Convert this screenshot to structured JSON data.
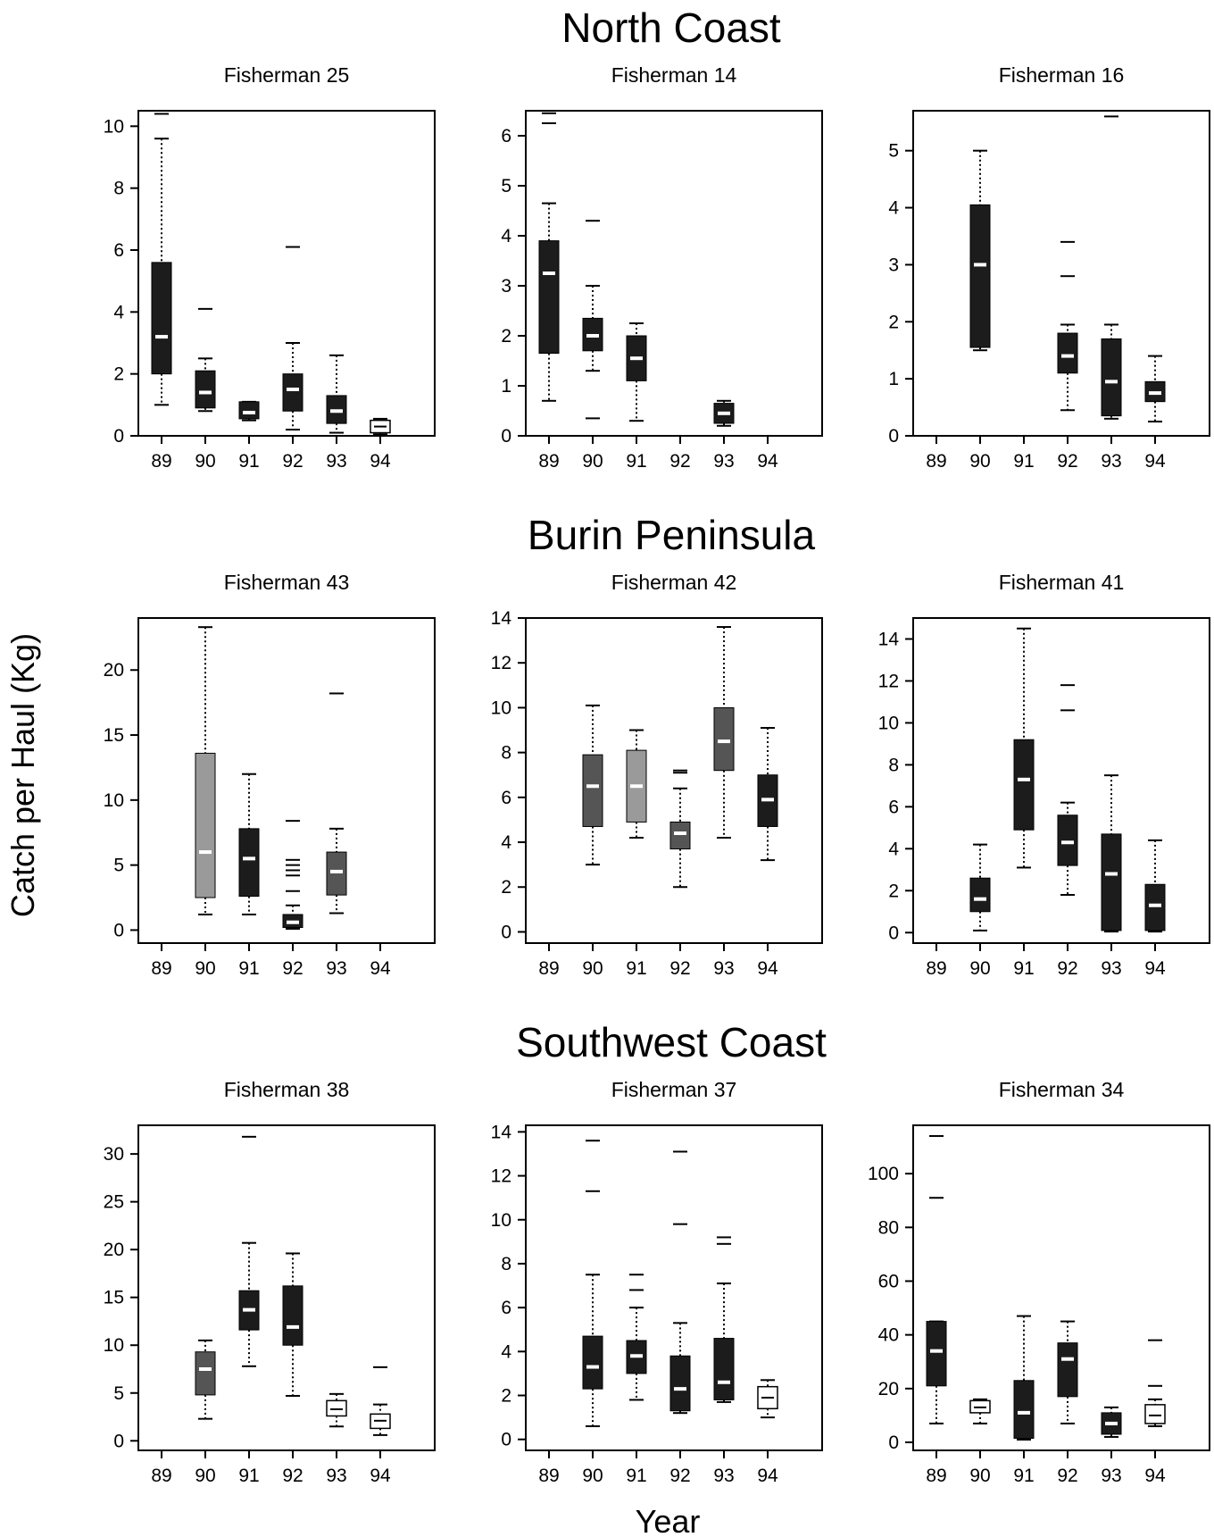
{
  "figure": {
    "xlabel": "Year",
    "ylabel": "Catch per Haul (Kg)"
  },
  "colors": {
    "box_dark": "#1c1c1c",
    "box_gray": "#555555",
    "box_light": "#9a9a9a",
    "median": "#ffffff",
    "ink": "#000000"
  },
  "regions": [
    {
      "title": "North Coast"
    },
    {
      "title": "Burin Peninsula"
    },
    {
      "title": "Southwest Coast"
    }
  ],
  "chart_data": [
    {
      "type": "box",
      "region": "North Coast",
      "title": "Fisherman 25",
      "categories": [
        "89",
        "90",
        "91",
        "92",
        "93",
        "94"
      ],
      "ylim": [
        0,
        10.5
      ],
      "yticks": [
        0,
        2,
        4,
        6,
        8,
        10
      ],
      "boxes": [
        {
          "x": "89",
          "whislo": 1.0,
          "q1": 2.0,
          "med": 3.2,
          "q3": 5.6,
          "whishi": 9.6,
          "fliers": [
            10.4
          ],
          "shade": "dark"
        },
        {
          "x": "90",
          "whislo": 0.8,
          "q1": 0.9,
          "med": 1.4,
          "q3": 2.1,
          "whishi": 2.5,
          "fliers": [
            4.1
          ],
          "shade": "dark"
        },
        {
          "x": "91",
          "whislo": 0.5,
          "q1": 0.55,
          "med": 0.75,
          "q3": 1.1,
          "whishi": 1.1,
          "fliers": [],
          "shade": "dark"
        },
        {
          "x": "92",
          "whislo": 0.2,
          "q1": 0.8,
          "med": 1.5,
          "q3": 2.0,
          "whishi": 3.0,
          "fliers": [
            6.1
          ],
          "shade": "dark"
        },
        {
          "x": "93",
          "whislo": 0.1,
          "q1": 0.4,
          "med": 0.8,
          "q3": 1.3,
          "whishi": 2.6,
          "fliers": [],
          "shade": "dark"
        },
        {
          "x": "94",
          "whislo": 0.05,
          "q1": 0.1,
          "med": 0.3,
          "q3": 0.5,
          "whishi": 0.55,
          "fliers": [],
          "shade": "open"
        }
      ]
    },
    {
      "type": "box",
      "region": "North Coast",
      "title": "Fisherman 14",
      "categories": [
        "89",
        "90",
        "91",
        "92",
        "93",
        "94"
      ],
      "ylim": [
        0,
        6.5
      ],
      "yticks": [
        0,
        1,
        2,
        3,
        4,
        5,
        6
      ],
      "boxes": [
        {
          "x": "89",
          "whislo": 0.7,
          "q1": 1.65,
          "med": 3.25,
          "q3": 3.9,
          "whishi": 4.65,
          "fliers": [
            6.25,
            6.45
          ],
          "shade": "dark"
        },
        {
          "x": "90",
          "whislo": 1.3,
          "q1": 1.7,
          "med": 2.0,
          "q3": 2.35,
          "whishi": 3.0,
          "fliers": [
            0.35,
            4.3
          ],
          "shade": "dark"
        },
        {
          "x": "91",
          "whislo": 0.3,
          "q1": 1.1,
          "med": 1.55,
          "q3": 2.0,
          "whishi": 2.25,
          "fliers": [],
          "shade": "dark"
        },
        {
          "x": "93",
          "whislo": 0.2,
          "q1": 0.25,
          "med": 0.45,
          "q3": 0.65,
          "whishi": 0.7,
          "fliers": [],
          "shade": "dark"
        }
      ]
    },
    {
      "type": "box",
      "region": "North Coast",
      "title": "Fisherman 16",
      "categories": [
        "89",
        "90",
        "91",
        "92",
        "93",
        "94"
      ],
      "ylim": [
        0,
        5.7
      ],
      "yticks": [
        0,
        1,
        2,
        3,
        4,
        5
      ],
      "boxes": [
        {
          "x": "90",
          "whislo": 1.5,
          "q1": 1.55,
          "med": 3.0,
          "q3": 4.05,
          "whishi": 5.0,
          "fliers": [],
          "shade": "dark"
        },
        {
          "x": "92",
          "whislo": 0.45,
          "q1": 1.1,
          "med": 1.4,
          "q3": 1.8,
          "whishi": 1.95,
          "fliers": [
            2.8,
            3.4
          ],
          "shade": "dark"
        },
        {
          "x": "93",
          "whislo": 0.3,
          "q1": 0.35,
          "med": 0.95,
          "q3": 1.7,
          "whishi": 1.95,
          "fliers": [
            5.6
          ],
          "shade": "dark"
        },
        {
          "x": "94",
          "whislo": 0.25,
          "q1": 0.6,
          "med": 0.75,
          "q3": 0.95,
          "whishi": 1.4,
          "fliers": [],
          "shade": "dark"
        }
      ]
    },
    {
      "type": "box",
      "region": "Burin Peninsula",
      "title": "Fisherman 43",
      "categories": [
        "89",
        "90",
        "91",
        "92",
        "93",
        "94"
      ],
      "ylim": [
        -1,
        24
      ],
      "yticks": [
        0,
        5,
        10,
        15,
        20
      ],
      "boxes": [
        {
          "x": "90",
          "whislo": 1.2,
          "q1": 2.5,
          "med": 6.0,
          "q3": 13.6,
          "whishi": 23.3,
          "fliers": [],
          "shade": "light"
        },
        {
          "x": "91",
          "whislo": 1.2,
          "q1": 2.6,
          "med": 5.5,
          "q3": 7.8,
          "whishi": 12.0,
          "fliers": [],
          "shade": "dark"
        },
        {
          "x": "92",
          "whislo": 0.1,
          "q1": 0.2,
          "med": 0.6,
          "q3": 1.2,
          "whishi": 1.9,
          "fliers": [
            3.0,
            4.2,
            4.6,
            5.0,
            5.4,
            8.4
          ],
          "shade": "dark"
        },
        {
          "x": "93",
          "whislo": 1.3,
          "q1": 2.7,
          "med": 4.5,
          "q3": 6.0,
          "whishi": 7.8,
          "fliers": [
            18.2
          ],
          "shade": "gray"
        }
      ]
    },
    {
      "type": "box",
      "region": "Burin Peninsula",
      "title": "Fisherman 42",
      "categories": [
        "89",
        "90",
        "91",
        "92",
        "93",
        "94"
      ],
      "ylim": [
        -0.5,
        14
      ],
      "yticks": [
        0,
        2,
        4,
        6,
        8,
        10,
        12,
        14
      ],
      "boxes": [
        {
          "x": "90",
          "whislo": 3.0,
          "q1": 4.7,
          "med": 6.5,
          "q3": 7.9,
          "whishi": 10.1,
          "fliers": [],
          "shade": "gray"
        },
        {
          "x": "91",
          "whislo": 4.2,
          "q1": 4.9,
          "med": 6.5,
          "q3": 8.1,
          "whishi": 9.0,
          "fliers": [],
          "shade": "light"
        },
        {
          "x": "92",
          "whislo": 2.0,
          "q1": 3.7,
          "med": 4.4,
          "q3": 4.9,
          "whishi": 6.4,
          "fliers": [
            7.1,
            7.2
          ],
          "shade": "gray"
        },
        {
          "x": "93",
          "whislo": 4.2,
          "q1": 7.2,
          "med": 8.5,
          "q3": 10.0,
          "whishi": 13.6,
          "fliers": [],
          "shade": "gray"
        },
        {
          "x": "94",
          "whislo": 3.2,
          "q1": 4.7,
          "med": 5.9,
          "q3": 7.0,
          "whishi": 9.1,
          "fliers": [],
          "shade": "dark"
        }
      ]
    },
    {
      "type": "box",
      "region": "Burin Peninsula",
      "title": "Fisherman 41",
      "categories": [
        "89",
        "90",
        "91",
        "92",
        "93",
        "94"
      ],
      "ylim": [
        -0.5,
        15
      ],
      "yticks": [
        0,
        2,
        4,
        6,
        8,
        10,
        12,
        14
      ],
      "boxes": [
        {
          "x": "90",
          "whislo": 0.1,
          "q1": 1.0,
          "med": 1.6,
          "q3": 2.6,
          "whishi": 4.2,
          "fliers": [],
          "shade": "dark"
        },
        {
          "x": "91",
          "whislo": 3.1,
          "q1": 4.9,
          "med": 7.3,
          "q3": 9.2,
          "whishi": 14.5,
          "fliers": [],
          "shade": "dark"
        },
        {
          "x": "92",
          "whislo": 1.8,
          "q1": 3.2,
          "med": 4.3,
          "q3": 5.6,
          "whishi": 6.2,
          "fliers": [
            10.6,
            11.8
          ],
          "shade": "dark"
        },
        {
          "x": "93",
          "whislo": 0.05,
          "q1": 0.1,
          "med": 2.8,
          "q3": 4.7,
          "whishi": 7.5,
          "fliers": [],
          "shade": "dark"
        },
        {
          "x": "94",
          "whislo": 0.05,
          "q1": 0.1,
          "med": 1.3,
          "q3": 2.3,
          "whishi": 4.4,
          "fliers": [],
          "shade": "dark"
        }
      ]
    },
    {
      "type": "box",
      "region": "Southwest Coast",
      "title": "Fisherman 38",
      "categories": [
        "89",
        "90",
        "91",
        "92",
        "93",
        "94"
      ],
      "ylim": [
        -1,
        33
      ],
      "yticks": [
        0,
        5,
        10,
        15,
        20,
        25,
        30
      ],
      "boxes": [
        {
          "x": "90",
          "whislo": 2.3,
          "q1": 4.8,
          "med": 7.5,
          "q3": 9.3,
          "whishi": 10.5,
          "fliers": [],
          "shade": "gray"
        },
        {
          "x": "91",
          "whislo": 7.8,
          "q1": 11.6,
          "med": 13.7,
          "q3": 15.7,
          "whishi": 20.7,
          "fliers": [
            31.8
          ],
          "shade": "dark"
        },
        {
          "x": "92",
          "whislo": 4.7,
          "q1": 10.0,
          "med": 11.9,
          "q3": 16.2,
          "whishi": 19.6,
          "fliers": [],
          "shade": "dark"
        },
        {
          "x": "93",
          "whislo": 1.5,
          "q1": 2.6,
          "med": 3.3,
          "q3": 4.2,
          "whishi": 4.9,
          "fliers": [],
          "shade": "open"
        },
        {
          "x": "94",
          "whislo": 0.6,
          "q1": 1.3,
          "med": 2.1,
          "q3": 2.8,
          "whishi": 3.8,
          "fliers": [
            7.7
          ],
          "shade": "open"
        }
      ]
    },
    {
      "type": "box",
      "region": "Southwest Coast",
      "title": "Fisherman 37",
      "categories": [
        "89",
        "90",
        "91",
        "92",
        "93",
        "94"
      ],
      "ylim": [
        -0.5,
        14.3
      ],
      "yticks": [
        0,
        2,
        4,
        6,
        8,
        10,
        12,
        14
      ],
      "boxes": [
        {
          "x": "90",
          "whislo": 0.6,
          "q1": 2.3,
          "med": 3.3,
          "q3": 4.7,
          "whishi": 7.5,
          "fliers": [
            11.3,
            13.6
          ],
          "shade": "dark"
        },
        {
          "x": "91",
          "whislo": 1.8,
          "q1": 3.0,
          "med": 3.8,
          "q3": 4.5,
          "whishi": 6.0,
          "fliers": [
            6.8,
            7.5
          ],
          "shade": "dark"
        },
        {
          "x": "92",
          "whislo": 1.2,
          "q1": 1.3,
          "med": 2.3,
          "q3": 3.8,
          "whishi": 5.3,
          "fliers": [
            9.8,
            13.1
          ],
          "shade": "dark"
        },
        {
          "x": "93",
          "whislo": 1.7,
          "q1": 1.8,
          "med": 2.6,
          "q3": 4.6,
          "whishi": 7.1,
          "fliers": [
            8.9,
            9.2
          ],
          "shade": "dark"
        },
        {
          "x": "94",
          "whislo": 1.0,
          "q1": 1.4,
          "med": 1.9,
          "q3": 2.4,
          "whishi": 2.7,
          "fliers": [],
          "shade": "open"
        }
      ]
    },
    {
      "type": "box",
      "region": "Southwest Coast",
      "title": "Fisherman 34",
      "categories": [
        "89",
        "90",
        "91",
        "92",
        "93",
        "94"
      ],
      "ylim": [
        -3,
        118
      ],
      "yticks": [
        0,
        20,
        40,
        60,
        80,
        100
      ],
      "boxes": [
        {
          "x": "89",
          "whislo": 7,
          "q1": 21,
          "med": 34,
          "q3": 45,
          "whishi": 45,
          "fliers": [
            91,
            114
          ],
          "shade": "dark"
        },
        {
          "x": "90",
          "whislo": 7,
          "q1": 11,
          "med": 13,
          "q3": 15.5,
          "whishi": 16,
          "fliers": [],
          "shade": "open"
        },
        {
          "x": "91",
          "whislo": 1,
          "q1": 1.5,
          "med": 11,
          "q3": 23,
          "whishi": 47,
          "fliers": [],
          "shade": "dark"
        },
        {
          "x": "92",
          "whislo": 7,
          "q1": 17,
          "med": 31,
          "q3": 37,
          "whishi": 45,
          "fliers": [],
          "shade": "dark"
        },
        {
          "x": "93",
          "whislo": 2,
          "q1": 3,
          "med": 7,
          "q3": 11,
          "whishi": 13,
          "fliers": [],
          "shade": "dark"
        },
        {
          "x": "94",
          "whislo": 6,
          "q1": 7,
          "med": 10,
          "q3": 14,
          "whishi": 16,
          "fliers": [
            21,
            38
          ],
          "shade": "open"
        }
      ]
    }
  ]
}
